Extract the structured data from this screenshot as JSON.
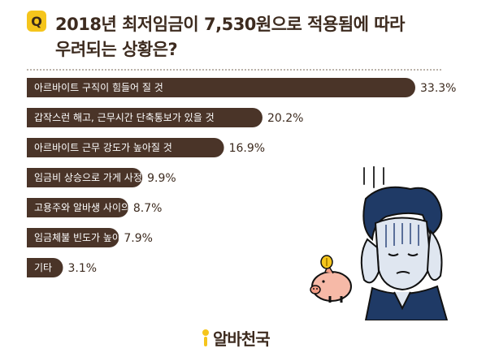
{
  "question_badge": "Q",
  "title": {
    "line1": "2018년 최저임금이 7,530원으로 적용됨에 따라",
    "line2": "우려되는 상황은?"
  },
  "chart_data": {
    "type": "bar",
    "orientation": "horizontal",
    "categories": [
      "아르바이트 구직이 힘들어 질 것",
      "갑작스런 해고, 근무시간 단축통보가 있을 것",
      "아르바이트 근무 강도가 높아질 것",
      "임금비 상승으로 가게 사정이 악화될 것",
      "고용주와 알바생 사이의 갈등이 깊어질 것",
      "임금체불 빈도가 높아질 것",
      "기타"
    ],
    "values": [
      33.3,
      20.2,
      16.9,
      9.9,
      8.7,
      7.9,
      3.1
    ],
    "value_labels": [
      "33.3%",
      "20.2%",
      "16.9%",
      "9.9%",
      "8.7%",
      "7.9%",
      "3.1%"
    ],
    "unit": "%",
    "bar_color": "#4a3428",
    "xlim": [
      0,
      33.3
    ]
  },
  "brand": {
    "text": "알바천국",
    "accent_color": "#f5c51c"
  },
  "colors": {
    "title": "#3d2b1f",
    "accent": "#f5c51c",
    "bar": "#4a3428"
  }
}
